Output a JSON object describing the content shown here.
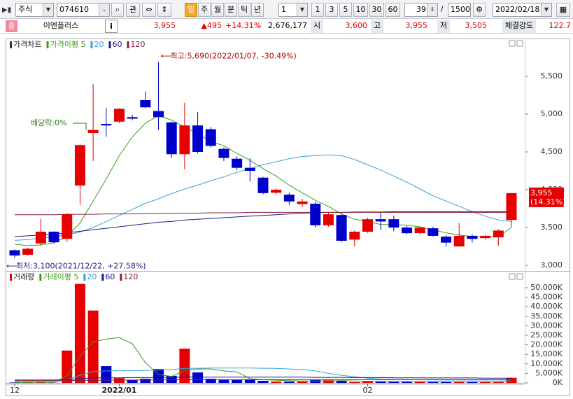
{
  "toolbar": {
    "market": "주식",
    "code": "074610",
    "lookup": "관",
    "periods": [
      "일",
      "주",
      "월",
      "분",
      "틱",
      "년"
    ],
    "period_n": "1",
    "intervals": [
      "1",
      "3",
      "5",
      "10",
      "30",
      "60"
    ],
    "count": "39",
    "sep": "/",
    "total": "1500",
    "date": "2022/02/18"
  },
  "quote": {
    "tag": "증",
    "name": "이엔플러스",
    "info": "i",
    "price": "3,955",
    "change": "▲495",
    "rate": "+14.31%",
    "volume": "2,676,177",
    "open_label": "시",
    "open": "3,600",
    "high_label": "고",
    "high": "3,955",
    "low_label": "저",
    "low": "3,505",
    "strength_label": "체결강도",
    "strength": "122.7"
  },
  "chart_data": [
    {
      "type": "candlestick",
      "title": "가격차트",
      "up_color": "#e60000",
      "down_color": "#0000cc",
      "open": [
        3200,
        3140,
        3290,
        3445,
        3350,
        4055,
        4750,
        4870,
        4900,
        4960,
        5185,
        5040,
        4890,
        4470,
        4850,
        4800,
        4540,
        4410,
        4290,
        4160,
        3960,
        3935,
        3810,
        3815,
        3530,
        3665,
        3340,
        3445,
        3610,
        3610,
        3500,
        3425,
        3490,
        3380,
        3250,
        3390,
        3360,
        3370,
        3600
      ],
      "high": [
        3210,
        3230,
        3620,
        3450,
        3690,
        4600,
        5400,
        5080,
        5080,
        4990,
        5300,
        5690,
        4900,
        5150,
        5030,
        4830,
        4560,
        4440,
        4420,
        4170,
        4020,
        3960,
        3880,
        3840,
        3700,
        3680,
        3460,
        3630,
        3700,
        3660,
        3520,
        3510,
        3510,
        3400,
        3560,
        3410,
        3400,
        3480,
        3955
      ],
      "low": [
        3100,
        3130,
        3260,
        3290,
        3310,
        3800,
        4380,
        4700,
        4880,
        4920,
        5080,
        4790,
        4420,
        4270,
        4480,
        4560,
        4380,
        4260,
        4110,
        3940,
        3940,
        3800,
        3770,
        3500,
        3510,
        3310,
        3250,
        3430,
        3470,
        3450,
        3410,
        3410,
        3380,
        3250,
        3250,
        3300,
        3340,
        3260,
        3505
      ],
      "close": [
        3130,
        3220,
        3445,
        3305,
        3675,
        4590,
        4790,
        4850,
        5070,
        4940,
        5090,
        4960,
        4470,
        4850,
        4500,
        4580,
        4420,
        4290,
        4250,
        3955,
        4000,
        3845,
        3845,
        3530,
        3675,
        3325,
        3445,
        3610,
        3580,
        3500,
        3425,
        3500,
        3390,
        3300,
        3390,
        3350,
        3390,
        3460,
        3955
      ],
      "series": [
        {
          "name": "가격이평 5",
          "color": "#3c9a1c",
          "values": [
            3280,
            3260,
            3270,
            3300,
            3380,
            3560,
            3850,
            4140,
            4450,
            4700,
            4880,
            4980,
            4920,
            4830,
            4740,
            4640,
            4580,
            4480,
            4390,
            4280,
            4180,
            4060,
            3960,
            3860,
            3780,
            3680,
            3610,
            3580,
            3540,
            3540,
            3530,
            3510,
            3470,
            3430,
            3400,
            3380,
            3370,
            3380,
            3500
          ]
        },
        {
          "name": "20",
          "color": "#3aa0d8",
          "values": [
            3330,
            3340,
            3360,
            3380,
            3400,
            3440,
            3500,
            3580,
            3660,
            3740,
            3820,
            3880,
            3950,
            4010,
            4060,
            4120,
            4170,
            4230,
            4280,
            4330,
            4370,
            4410,
            4440,
            4450,
            4460,
            4450,
            4400,
            4330,
            4260,
            4180,
            4100,
            4010,
            3920,
            3850,
            3780,
            3710,
            3650,
            3600,
            3580
          ]
        },
        {
          "name": "60",
          "color": "#1c1c8c",
          "values": [
            3380,
            3390,
            3400,
            3410,
            3430,
            3450,
            3470,
            3490,
            3510,
            3530,
            3550,
            3570,
            3580,
            3600,
            3610,
            3620,
            3630,
            3640,
            3650,
            3660,
            3670,
            3680,
            3690,
            3695,
            3700,
            3700,
            3705,
            3705,
            3705,
            3710,
            3710,
            3710,
            3710,
            3710,
            3710,
            3710,
            3710,
            3710,
            3710
          ]
        },
        {
          "name": "120",
          "color": "#8c1c3c",
          "values": [
            3670,
            3670,
            3670,
            3670,
            3675,
            3675,
            3675,
            3680,
            3680,
            3680,
            3685,
            3685,
            3690,
            3690,
            3690,
            3695,
            3695,
            3695,
            3700,
            3700,
            3700,
            3700,
            3700,
            3700,
            3700,
            3700,
            3700,
            3700,
            3700,
            3700,
            3700,
            3700,
            3700,
            3700,
            3700,
            3700,
            3700,
            3700,
            3700
          ]
        }
      ],
      "ylim": [
        2945,
        5935
      ],
      "yticks": [
        {
          "value": 3000,
          "label": "3,000"
        },
        {
          "value": 3500,
          "label": "3,500"
        },
        {
          "value": 4000,
          "label": "4,000"
        },
        {
          "value": 4500,
          "label": "4,500"
        },
        {
          "value": 5000,
          "label": "5,000"
        },
        {
          "value": 5500,
          "label": "5,500"
        }
      ],
      "annotations": {
        "high": "최고:5,690(2022/01/07, -30.49%)",
        "low": "최저:3,100(2021/12/22, +27.58%)",
        "dividend": "배당락:0%"
      },
      "last_value_label": "3,955",
      "last_rate_label": "(14.31%)"
    },
    {
      "type": "volume",
      "title": "거래량",
      "categories": [
        "12",
        null,
        null,
        null,
        null,
        null,
        null,
        null,
        "2022/01",
        null,
        null,
        null,
        null,
        null,
        null,
        null,
        null,
        null,
        null,
        null,
        null,
        null,
        null,
        null,
        null,
        null,
        null,
        "02",
        null,
        null,
        null,
        null,
        null,
        null,
        null,
        null,
        null,
        null,
        null
      ],
      "values": [
        200,
        250,
        700,
        100,
        17000,
        52000,
        38000,
        8800,
        2500,
        1500,
        2200,
        7300,
        3700,
        18000,
        5500,
        2200,
        1800,
        1500,
        1800,
        1100,
        700,
        700,
        700,
        1500,
        1400,
        1100,
        400,
        1000,
        600,
        600,
        600,
        700,
        600,
        600,
        700,
        500,
        600,
        600,
        2676
      ],
      "series": [
        {
          "name": "거래이평 5",
          "color": "#3c9a1c",
          "values": [
            300,
            300,
            350,
            300,
            3700,
            14000,
            21500,
            23000,
            23800,
            20500,
            10600,
            4400,
            3400,
            6500,
            7300,
            7300,
            6300,
            5800,
            2200,
            1700,
            1400,
            1200,
            1000,
            1000,
            1000,
            1200,
            1000,
            900,
            800,
            700,
            700,
            650,
            650,
            600,
            600,
            600,
            600,
            600,
            900
          ]
        },
        {
          "name": "20",
          "color": "#3aa0d8",
          "values": [
            600,
            600,
            650,
            650,
            1500,
            4000,
            5900,
            6300,
            6400,
            6400,
            6500,
            6800,
            7000,
            7600,
            7700,
            7800,
            7800,
            7800,
            7800,
            7700,
            7600,
            7300,
            7000,
            6300,
            5000,
            4000,
            3200,
            2500,
            2000,
            1800,
            1700,
            1600,
            1600,
            1500,
            1500,
            1500,
            1500,
            1500,
            1500
          ]
        },
        {
          "name": "60",
          "color": "#1c1c8c",
          "values": [
            1500,
            1500,
            1500,
            1500,
            1700,
            2200,
            2600,
            2700,
            2700,
            2800,
            2800,
            2900,
            2900,
            3000,
            3000,
            3000,
            3000,
            3000,
            3000,
            3000,
            3000,
            3000,
            3000,
            2900,
            2900,
            2900,
            2800,
            2800,
            2800,
            2700,
            2700,
            2700,
            2600,
            2600,
            2600,
            2600,
            2500,
            2500,
            2500
          ]
        },
        {
          "name": "120",
          "color": "#8c1c3c",
          "values": [
            1200,
            1200,
            1200,
            1200,
            1250,
            1300,
            1400,
            1450,
            1500,
            1500,
            1550,
            1550,
            1600,
            1650,
            1650,
            1700,
            1700,
            1700,
            1700,
            1700,
            1700,
            1700,
            1700,
            1700,
            1700,
            1700,
            1700,
            1700,
            1700,
            1700,
            1700,
            1700,
            1700,
            1700,
            1700,
            1700,
            1700,
            1700,
            1700
          ]
        }
      ],
      "ylim": [
        -368,
        52941
      ],
      "yticks": [
        {
          "value": 0,
          "label": "0K"
        },
        {
          "value": 5000,
          "label": "5,000K"
        },
        {
          "value": 10000,
          "label": "10,000K"
        },
        {
          "value": 15000,
          "label": "15,000K"
        },
        {
          "value": 20000,
          "label": "20,000K"
        },
        {
          "value": 25000,
          "label": "25,000K"
        },
        {
          "value": 30000,
          "label": "30,000K"
        },
        {
          "value": 35000,
          "label": "35,000K"
        },
        {
          "value": 40000,
          "label": "40,000K"
        },
        {
          "value": 45000,
          "label": "45,000K"
        },
        {
          "value": 50000,
          "label": "50,000K"
        }
      ]
    }
  ]
}
